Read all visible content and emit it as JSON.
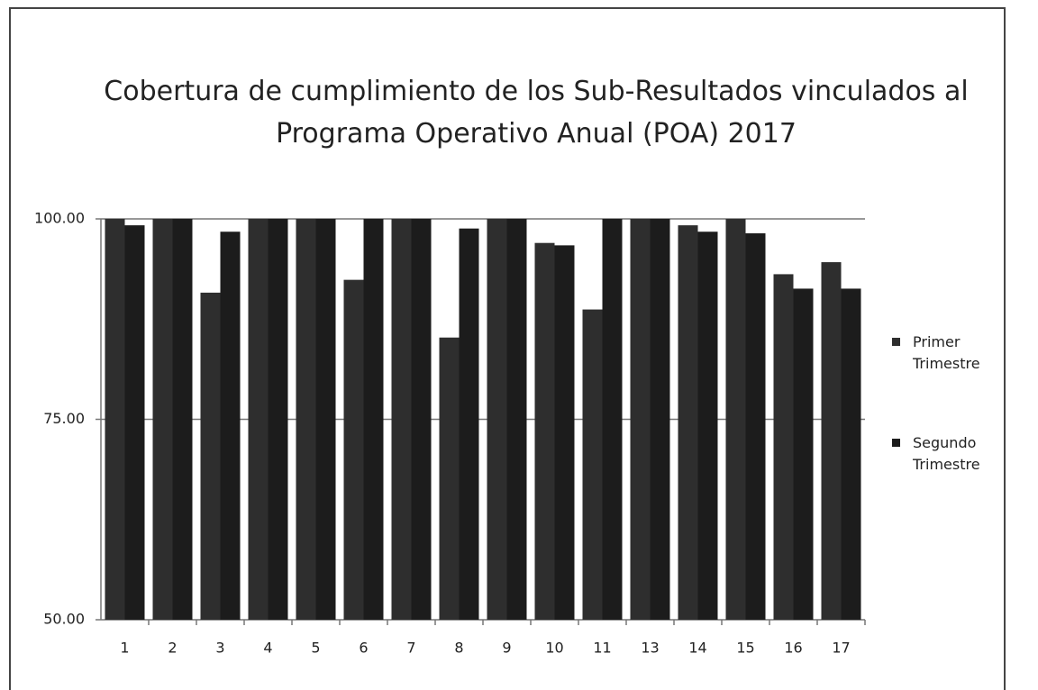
{
  "chart_data": {
    "type": "bar",
    "title": "Cobertura de cumplimiento de los Sub-Resultados vinculados al Programa Operativo Anual (POA) 2017",
    "categories": [
      "1",
      "2",
      "3",
      "4",
      "5",
      "6",
      "7",
      "8",
      "9",
      "10",
      "11",
      "13",
      "14",
      "15",
      "16",
      "17"
    ],
    "series": [
      {
        "name": "Primer Trimestre",
        "color": "#2e2e2e",
        "values": [
          100,
          100,
          90.8,
          100,
          100,
          92.4,
          100,
          85.2,
          100,
          97,
          88.7,
          100,
          99.2,
          100,
          93.1,
          94.6
        ]
      },
      {
        "name": "Segundo Trimestre",
        "color": "#1c1c1c",
        "values": [
          99.2,
          100,
          98.4,
          100,
          100,
          100,
          100,
          98.8,
          100,
          96.7,
          100,
          100,
          98.4,
          98.2,
          91.3,
          91.3
        ]
      }
    ],
    "ylim": [
      50,
      100
    ],
    "yticks": [
      {
        "value": 50,
        "label": "50.00"
      },
      {
        "value": 75,
        "label": "75.00"
      },
      {
        "value": 100,
        "label": "100.00"
      }
    ],
    "grid": true,
    "legend": "right"
  }
}
